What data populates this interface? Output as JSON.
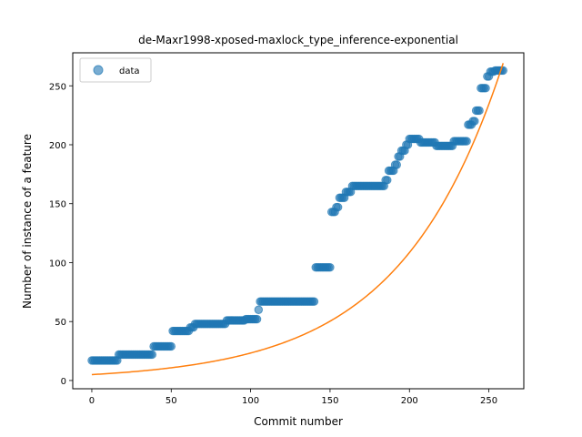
{
  "chart_data": {
    "type": "scatter",
    "title": "de-Maxr1998-xposed-maxlock_type_inference-exponential",
    "xlabel": "Commit number",
    "ylabel": "Number of instance of a feature",
    "xlim": [
      -12,
      272
    ],
    "ylim": [
      -7,
      278
    ],
    "xticks": [
      0,
      50,
      100,
      150,
      200,
      250
    ],
    "yticks": [
      0,
      50,
      100,
      150,
      200,
      250
    ],
    "legend": {
      "position": "top-left",
      "entries": [
        "data"
      ]
    },
    "colors": {
      "data": "#1f77b4",
      "fit": "#ff7f0e"
    },
    "data_segments": [
      {
        "x0": 0,
        "x1": 16,
        "y": 17
      },
      {
        "x0": 17,
        "x1": 38,
        "y": 22
      },
      {
        "x0": 39,
        "x1": 50,
        "y": 29
      },
      {
        "x0": 51,
        "x1": 61,
        "y": 42
      },
      {
        "x0": 62,
        "x1": 64,
        "y": 45
      },
      {
        "x0": 65,
        "x1": 84,
        "y": 48
      },
      {
        "x0": 85,
        "x1": 96,
        "y": 51
      },
      {
        "x0": 97,
        "x1": 104,
        "y": 52
      },
      {
        "x0": 105,
        "x1": 105,
        "y": 60
      },
      {
        "x0": 106,
        "x1": 140,
        "y": 67
      },
      {
        "x0": 141,
        "x1": 150,
        "y": 96
      },
      {
        "x0": 151,
        "x1": 153,
        "y": 143
      },
      {
        "x0": 154,
        "x1": 155,
        "y": 147
      },
      {
        "x0": 156,
        "x1": 159,
        "y": 155
      },
      {
        "x0": 160,
        "x1": 163,
        "y": 160
      },
      {
        "x0": 164,
        "x1": 184,
        "y": 165
      },
      {
        "x0": 185,
        "x1": 186,
        "y": 170
      },
      {
        "x0": 187,
        "x1": 190,
        "y": 178
      },
      {
        "x0": 191,
        "x1": 192,
        "y": 183
      },
      {
        "x0": 193,
        "x1": 194,
        "y": 190
      },
      {
        "x0": 195,
        "x1": 197,
        "y": 195
      },
      {
        "x0": 198,
        "x1": 199,
        "y": 200
      },
      {
        "x0": 200,
        "x1": 206,
        "y": 205
      },
      {
        "x0": 207,
        "x1": 216,
        "y": 202
      },
      {
        "x0": 217,
        "x1": 227,
        "y": 199
      },
      {
        "x0": 228,
        "x1": 236,
        "y": 203
      },
      {
        "x0": 237,
        "x1": 239,
        "y": 217
      },
      {
        "x0": 240,
        "x1": 241,
        "y": 220
      },
      {
        "x0": 242,
        "x1": 244,
        "y": 229
      },
      {
        "x0": 245,
        "x1": 248,
        "y": 248
      },
      {
        "x0": 249,
        "x1": 250,
        "y": 258
      },
      {
        "x0": 251,
        "x1": 253,
        "y": 262
      },
      {
        "x0": 254,
        "x1": 259,
        "y": 263
      }
    ],
    "fit": {
      "model": "exponential",
      "x_start": 0,
      "x_end": 259,
      "a": 5.0,
      "b": 0.01539
    }
  }
}
